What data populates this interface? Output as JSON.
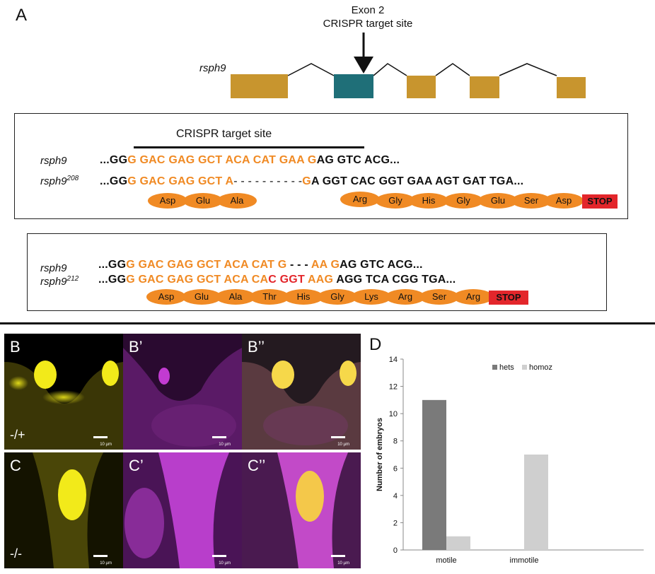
{
  "panels": {
    "a": "A",
    "b": "B",
    "b1": "B’",
    "b2": "B’’",
    "c": "C",
    "c1": "C’",
    "c2": "C’’",
    "d": "D"
  },
  "gene_diagram": {
    "gene_name": "rsph9",
    "callout_line1": "Exon 2",
    "callout_line2": "CRISPR target site",
    "colors": {
      "exon": "#c8952e",
      "target_exon": "#1f6f78"
    }
  },
  "box1": {
    "target_label": "CRISPR target site",
    "wt_name": "rsph9",
    "mut_name": "rsph9",
    "mut_sup": "208",
    "wt_seq": {
      "a": "...GG",
      "b": "G GAC GAG GCT ACA CAT GAA G",
      "c": "AG GTC ACG..."
    },
    "mut_seq": {
      "a": "...GG",
      "b": "G GAC GAG GCT A",
      "gap": "- - - - - - - - - -",
      "c": "G",
      "d": "A GGT CAC GGT GAA AGT GAT TGA..."
    },
    "amino_acids_left": [
      "Asp",
      "Glu",
      "Ala"
    ],
    "amino_acids_right": [
      "Arg",
      "Gly",
      "His",
      "Gly",
      "Glu",
      "Ser",
      "Asp"
    ],
    "stop": "STOP"
  },
  "box2": {
    "wt_name": "rsph9",
    "mut_name": "rsph9",
    "mut_sup": "212",
    "wt_seq": {
      "a": "...GG",
      "b": "G GAC GAG GCT ACA CAT G",
      "gap": " - - - ",
      "c": "AA G",
      "d": "AG GTC ACG..."
    },
    "mut_seq": {
      "a": "...GG",
      "b": "G GAC GAG GCT ACA CA",
      "ins": "C GGT",
      "c": " AAG",
      "d": " AGG TCA CGG TGA..."
    },
    "amino_acids": [
      "Asp",
      "Glu",
      "Ala",
      "Thr",
      "His",
      "Gly",
      "Lys",
      "Arg",
      "Ser",
      "Arg"
    ],
    "stop": "STOP"
  },
  "micrographs": {
    "genotype_top": "-/+",
    "genotype_bottom": "-/-",
    "scale": "10 µm",
    "colors": {
      "yellow": "#f2ea1a",
      "magenta": "#c23bd1"
    }
  },
  "chart_data": {
    "type": "bar",
    "categories": [
      "motile",
      "immotile"
    ],
    "series": [
      {
        "name": "hets",
        "values": [
          11,
          0
        ],
        "color": "#7a7a7a"
      },
      {
        "name": "homoz",
        "values": [
          1,
          7
        ],
        "color": "#cfcfcf"
      }
    ],
    "ylabel": "Number of embryos",
    "xlabel": "",
    "ylim": [
      0,
      14
    ],
    "yticks": [
      0,
      2,
      4,
      6,
      8,
      10,
      12,
      14
    ],
    "legend": "top-center",
    "grid": false
  }
}
